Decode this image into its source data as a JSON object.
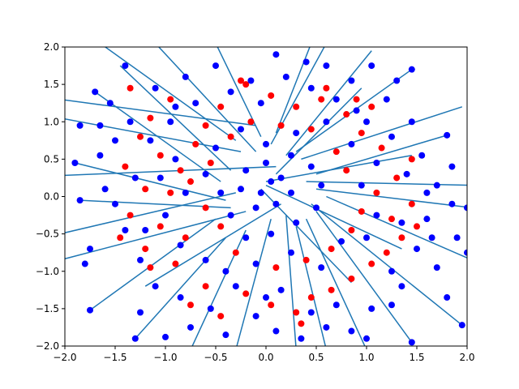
{
  "chart_data": {
    "type": "scatter",
    "title": "",
    "xlabel": "",
    "ylabel": "",
    "xlim": [
      -2,
      2
    ],
    "ylim": [
      -2,
      2
    ],
    "xticks": [
      -2.0,
      -1.5,
      -1.0,
      -0.5,
      0.0,
      0.5,
      1.0,
      1.5,
      2.0
    ],
    "yticks": [
      -2.0,
      -1.5,
      -1.0,
      -0.5,
      0.0,
      0.5,
      1.0,
      1.5,
      2.0
    ],
    "xtick_labels": [
      "−2.0",
      "−1.5",
      "−1.0",
      "−0.5",
      "0.0",
      "0.5",
      "1.0",
      "1.5",
      "2.0"
    ],
    "ytick_labels": [
      "−2.0",
      "−1.5",
      "−1.0",
      "−0.5",
      "0.0",
      "0.5",
      "1.0",
      "1.5",
      "2.0"
    ],
    "grid": false,
    "legend": "none",
    "colors": {
      "red_points": "#ff0000",
      "blue_points": "#0000ff",
      "segments": "#1f77b4"
    },
    "segments": [
      {
        "x1": -0.1,
        "y1": 0.95,
        "x2": -2.05,
        "y2": 1.3
      },
      {
        "x1": -0.25,
        "y1": 0.6,
        "x2": -2.05,
        "y2": 1.05
      },
      {
        "x1": 0.1,
        "y1": 0.4,
        "x2": -2.05,
        "y2": 0.28
      },
      {
        "x1": -0.3,
        "y1": 0.05,
        "x2": -2.05,
        "y2": -0.5
      },
      {
        "x1": -0.2,
        "y1": -0.2,
        "x2": -2.05,
        "y2": -0.85
      },
      {
        "x1": -0.5,
        "y1": -0.3,
        "x2": -1.75,
        "y2": -1.52
      },
      {
        "x1": -0.4,
        "y1": -0.55,
        "x2": -1.3,
        "y2": -1.9
      },
      {
        "x1": -0.2,
        "y1": -0.45,
        "x2": -0.75,
        "y2": -2.05
      },
      {
        "x1": 0.05,
        "y1": -0.3,
        "x2": -0.3,
        "y2": -2.05
      },
      {
        "x1": 0.2,
        "y1": -0.25,
        "x2": 0.3,
        "y2": -2.05
      },
      {
        "x1": 0.3,
        "y1": -0.4,
        "x2": 0.6,
        "y2": -2.05
      },
      {
        "x1": 0.4,
        "y1": -0.3,
        "x2": 1.0,
        "y2": -2.05
      },
      {
        "x1": 0.5,
        "y1": -0.2,
        "x2": 1.45,
        "y2": -1.95
      },
      {
        "x1": 0.45,
        "y1": -0.1,
        "x2": 1.95,
        "y2": -1.72
      },
      {
        "x1": 0.6,
        "y1": 0.0,
        "x2": 2.05,
        "y2": -0.85
      },
      {
        "x1": 0.5,
        "y1": 0.1,
        "x2": 2.05,
        "y2": -0.15
      },
      {
        "x1": 0.4,
        "y1": 0.2,
        "x2": 2.05,
        "y2": 0.15
      },
      {
        "x1": 0.5,
        "y1": 0.3,
        "x2": 1.8,
        "y2": 0.82
      },
      {
        "x1": 0.35,
        "y1": 0.5,
        "x2": 1.95,
        "y2": 1.2
      },
      {
        "x1": 0.3,
        "y1": 0.6,
        "x2": 1.45,
        "y2": 1.7
      },
      {
        "x1": 0.2,
        "y1": 0.55,
        "x2": 1.05,
        "y2": 1.95
      },
      {
        "x1": 0.05,
        "y1": 0.7,
        "x2": 0.6,
        "y2": 2.05
      },
      {
        "x1": 0.1,
        "y1": 0.85,
        "x2": 0.45,
        "y2": 2.05
      },
      {
        "x1": -0.05,
        "y1": 0.8,
        "x2": -0.5,
        "y2": 2.05
      },
      {
        "x1": -0.1,
        "y1": 0.6,
        "x2": -1.1,
        "y2": 2.05
      },
      {
        "x1": -0.3,
        "y1": 0.75,
        "x2": -1.65,
        "y2": 2.05
      },
      {
        "x1": -0.35,
        "y1": 0.35,
        "x2": -1.45,
        "y2": 1.75
      },
      {
        "x1": -0.45,
        "y1": 0.2,
        "x2": -1.7,
        "y2": 1.4
      },
      {
        "x1": -0.4,
        "y1": -0.05,
        "x2": -1.9,
        "y2": 0.45
      },
      {
        "x1": -0.35,
        "y1": -0.15,
        "x2": -1.85,
        "y2": -0.05
      },
      {
        "x1": 0.15,
        "y1": -0.1,
        "x2": -1.2,
        "y2": -1.2
      },
      {
        "x1": 0.0,
        "y1": 0.2,
        "x2": 1.45,
        "y2": 0.55
      },
      {
        "x1": 0.0,
        "y1": 0.15,
        "x2": 1.35,
        "y2": -0.7
      },
      {
        "x1": -0.05,
        "y1": 0.1,
        "x2": 0.85,
        "y2": -1.15
      },
      {
        "x1": 0.1,
        "y1": 0.3,
        "x2": 0.95,
        "y2": 1.45
      }
    ],
    "series": [
      {
        "color": "red",
        "points": [
          [
            -1.35,
            1.45
          ],
          [
            -1.15,
            1.05
          ],
          [
            -0.95,
            1.3
          ],
          [
            -1.25,
            0.8
          ],
          [
            -1.05,
            0.55
          ],
          [
            -1.4,
            0.4
          ],
          [
            -0.85,
            0.35
          ],
          [
            -1.2,
            0.1
          ],
          [
            -0.95,
            0.05
          ],
          [
            -1.35,
            -0.25
          ],
          [
            -1.05,
            -0.4
          ],
          [
            -0.8,
            -0.55
          ],
          [
            -1.2,
            -0.7
          ],
          [
            -0.9,
            -0.9
          ],
          [
            -0.6,
            -1.2
          ],
          [
            -0.75,
            -1.45
          ],
          [
            -0.45,
            -1.6
          ],
          [
            -0.2,
            -1.3
          ],
          [
            0.05,
            -1.45
          ],
          [
            0.3,
            -1.55
          ],
          [
            0.45,
            -1.35
          ],
          [
            0.65,
            -1.25
          ],
          [
            0.85,
            -1.1
          ],
          [
            1.05,
            -0.9
          ],
          [
            1.2,
            -0.75
          ],
          [
            1.35,
            -0.55
          ],
          [
            1.5,
            -0.4
          ],
          [
            1.25,
            -0.3
          ],
          [
            1.45,
            -0.1
          ],
          [
            1.1,
            0.05
          ],
          [
            1.3,
            0.25
          ],
          [
            1.45,
            0.5
          ],
          [
            1.15,
            0.65
          ],
          [
            0.95,
            0.85
          ],
          [
            0.8,
            1.1
          ],
          [
            0.55,
            1.3
          ],
          [
            0.3,
            1.2
          ],
          [
            0.05,
            1.35
          ],
          [
            -0.2,
            1.5
          ],
          [
            -0.45,
            1.2
          ],
          [
            -0.6,
            0.95
          ],
          [
            -0.7,
            0.7
          ],
          [
            -0.55,
            0.45
          ],
          [
            -0.75,
            0.2
          ],
          [
            -0.6,
            -0.15
          ],
          [
            -0.45,
            -0.4
          ],
          [
            -0.3,
            -0.75
          ],
          [
            0.1,
            -0.95
          ],
          [
            0.4,
            -0.85
          ],
          [
            0.65,
            -0.7
          ],
          [
            0.85,
            -0.45
          ],
          [
            0.95,
            -0.2
          ],
          [
            0.8,
            0.35
          ],
          [
            0.7,
            0.6
          ],
          [
            0.45,
            0.9
          ],
          [
            0.15,
            0.95
          ],
          [
            -0.15,
            1.0
          ],
          [
            -0.35,
            0.8
          ],
          [
            0.6,
            1.45
          ],
          [
            0.9,
            1.3
          ],
          [
            1.05,
            1.2
          ],
          [
            -1.45,
            -0.55
          ],
          [
            -1.15,
            -0.95
          ],
          [
            -0.25,
            1.55
          ],
          [
            0.35,
            -1.7
          ]
        ]
      },
      {
        "color": "blue",
        "points": [
          [
            -1.4,
            1.75
          ],
          [
            -1.7,
            1.4
          ],
          [
            -1.85,
            0.95
          ],
          [
            -1.65,
            0.55
          ],
          [
            -1.9,
            0.45
          ],
          [
            -1.85,
            -0.05
          ],
          [
            -1.75,
            -0.7
          ],
          [
            -1.8,
            -0.9
          ],
          [
            -1.75,
            -1.52
          ],
          [
            -1.3,
            -1.9
          ],
          [
            -1.0,
            -1.88
          ],
          [
            -0.75,
            -1.75
          ],
          [
            -0.4,
            -1.85
          ],
          [
            -0.1,
            -1.6
          ],
          [
            0.1,
            -1.8
          ],
          [
            0.35,
            -1.9
          ],
          [
            0.6,
            -1.75
          ],
          [
            0.85,
            -1.8
          ],
          [
            1.0,
            -1.9
          ],
          [
            1.45,
            -1.95
          ],
          [
            1.95,
            -1.72
          ],
          [
            1.8,
            -1.35
          ],
          [
            1.35,
            -1.2
          ],
          [
            1.7,
            -0.95
          ],
          [
            2.0,
            -0.75
          ],
          [
            1.9,
            -0.55
          ],
          [
            1.6,
            -0.3
          ],
          [
            1.85,
            -0.1
          ],
          [
            2.0,
            -0.15
          ],
          [
            1.7,
            0.15
          ],
          [
            1.85,
            0.4
          ],
          [
            1.8,
            0.82
          ],
          [
            1.55,
            0.55
          ],
          [
            1.45,
            1.0
          ],
          [
            1.2,
            1.3
          ],
          [
            1.45,
            1.7
          ],
          [
            1.05,
            1.75
          ],
          [
            0.85,
            1.55
          ],
          [
            0.6,
            1.75
          ],
          [
            0.4,
            1.8
          ],
          [
            0.1,
            1.9
          ],
          [
            -0.15,
            1.55
          ],
          [
            -0.5,
            1.75
          ],
          [
            -0.8,
            1.6
          ],
          [
            -1.1,
            1.45
          ],
          [
            -1.55,
            1.25
          ],
          [
            -1.35,
            1.0
          ],
          [
            -1.5,
            0.75
          ],
          [
            -1.3,
            0.25
          ],
          [
            -1.5,
            -0.1
          ],
          [
            -1.4,
            -0.45
          ],
          [
            -1.25,
            -0.85
          ],
          [
            -1.1,
            -1.2
          ],
          [
            -0.85,
            -1.35
          ],
          [
            -0.55,
            -1.5
          ],
          [
            -0.3,
            -1.2
          ],
          [
            0.15,
            -1.25
          ],
          [
            0.45,
            -1.55
          ],
          [
            0.7,
            -1.45
          ],
          [
            1.05,
            -1.5
          ],
          [
            1.25,
            -1.0
          ],
          [
            1.5,
            -0.7
          ],
          [
            1.35,
            -0.35
          ],
          [
            1.6,
            0.05
          ],
          [
            1.4,
            0.3
          ],
          [
            1.25,
            0.8
          ],
          [
            1.0,
            1.0
          ],
          [
            0.7,
            1.3
          ],
          [
            0.45,
            1.45
          ],
          [
            0.2,
            1.6
          ],
          [
            -0.05,
            1.25
          ],
          [
            -0.35,
            1.4
          ],
          [
            -0.7,
            1.25
          ],
          [
            -0.95,
            1.0
          ],
          [
            -1.15,
            0.75
          ],
          [
            -0.9,
            0.5
          ],
          [
            -1.05,
            0.25
          ],
          [
            -0.8,
            0.05
          ],
          [
            -1.0,
            -0.25
          ],
          [
            -0.85,
            -0.65
          ],
          [
            -0.6,
            -0.85
          ],
          [
            -0.4,
            -1.0
          ],
          [
            -0.1,
            -0.9
          ],
          [
            0.25,
            -0.75
          ],
          [
            0.55,
            -0.95
          ],
          [
            0.75,
            -0.6
          ],
          [
            1.0,
            -0.55
          ],
          [
            1.1,
            -0.25
          ],
          [
            0.95,
            0.15
          ],
          [
            1.1,
            0.45
          ],
          [
            0.85,
            0.7
          ],
          [
            0.6,
            1.0
          ],
          [
            0.3,
            0.85
          ],
          [
            0.0,
            0.7
          ],
          [
            -0.25,
            0.9
          ],
          [
            -0.5,
            0.65
          ],
          [
            -0.6,
            0.3
          ],
          [
            -0.45,
            0.05
          ],
          [
            -0.35,
            -0.25
          ],
          [
            -0.2,
            -0.55
          ],
          [
            0.05,
            -0.5
          ],
          [
            0.3,
            -0.35
          ],
          [
            0.5,
            -0.15
          ],
          [
            0.55,
            0.15
          ],
          [
            0.45,
            0.4
          ],
          [
            0.25,
            0.55
          ],
          [
            0.0,
            0.45
          ],
          [
            -0.2,
            0.35
          ],
          [
            -0.25,
            0.1
          ],
          [
            -0.1,
            -0.15
          ],
          [
            0.1,
            -0.1
          ],
          [
            0.25,
            0.05
          ],
          [
            0.15,
            0.25
          ],
          [
            -0.05,
            0.05
          ],
          [
            0.05,
            0.2
          ],
          [
            -1.6,
            0.1
          ],
          [
            -1.2,
            -0.45
          ],
          [
            1.25,
            -1.45
          ],
          [
            -0.9,
            1.2
          ],
          [
            0.9,
            1.15
          ],
          [
            1.65,
            -0.55
          ],
          [
            -1.65,
            0.95
          ],
          [
            0.0,
            -1.35
          ],
          [
            1.3,
            1.55
          ],
          [
            -1.25,
            -1.55
          ]
        ]
      }
    ]
  }
}
